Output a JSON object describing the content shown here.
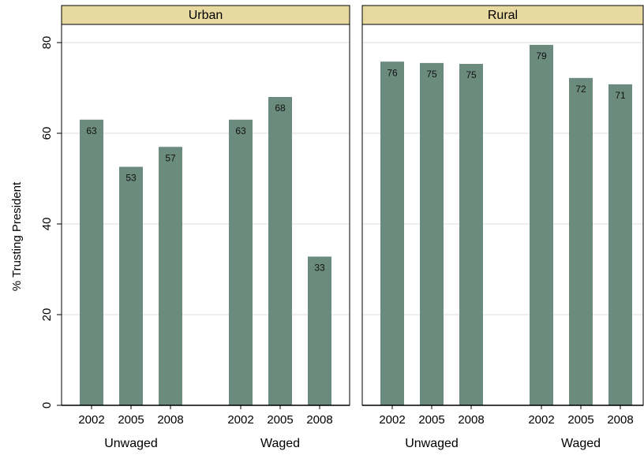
{
  "chart_data": [
    {
      "type": "bar",
      "title": "Urban",
      "ylabel": "% Trusting President",
      "color": "#6b8b7e",
      "ylim": [
        0,
        80
      ],
      "yticks": [
        0,
        20,
        40,
        60,
        80
      ],
      "grid": true,
      "groups": [
        {
          "name": "Unwaged",
          "categories": [
            "2002",
            "2005",
            "2008"
          ],
          "values": [
            63,
            52.6,
            57
          ],
          "value_labels": [
            "63",
            "53",
            "57"
          ]
        },
        {
          "name": "Waged",
          "categories": [
            "2002",
            "2005",
            "2008"
          ],
          "values": [
            63,
            68,
            32.8
          ],
          "value_labels": [
            "63",
            "68",
            "33"
          ]
        }
      ]
    },
    {
      "type": "bar",
      "title": "Rural",
      "color": "#6b8b7e",
      "ylim": [
        0,
        80
      ],
      "yticks": [
        0,
        20,
        40,
        60,
        80
      ],
      "grid": true,
      "groups": [
        {
          "name": "Unwaged",
          "categories": [
            "2002",
            "2005",
            "2008"
          ],
          "values": [
            75.8,
            75.5,
            75.3
          ],
          "value_labels": [
            "76",
            "75",
            "75"
          ]
        },
        {
          "name": "Waged",
          "categories": [
            "2002",
            "2005",
            "2008"
          ],
          "values": [
            79.5,
            72.2,
            70.8
          ],
          "value_labels": [
            "79",
            "72",
            "71"
          ]
        }
      ]
    }
  ]
}
